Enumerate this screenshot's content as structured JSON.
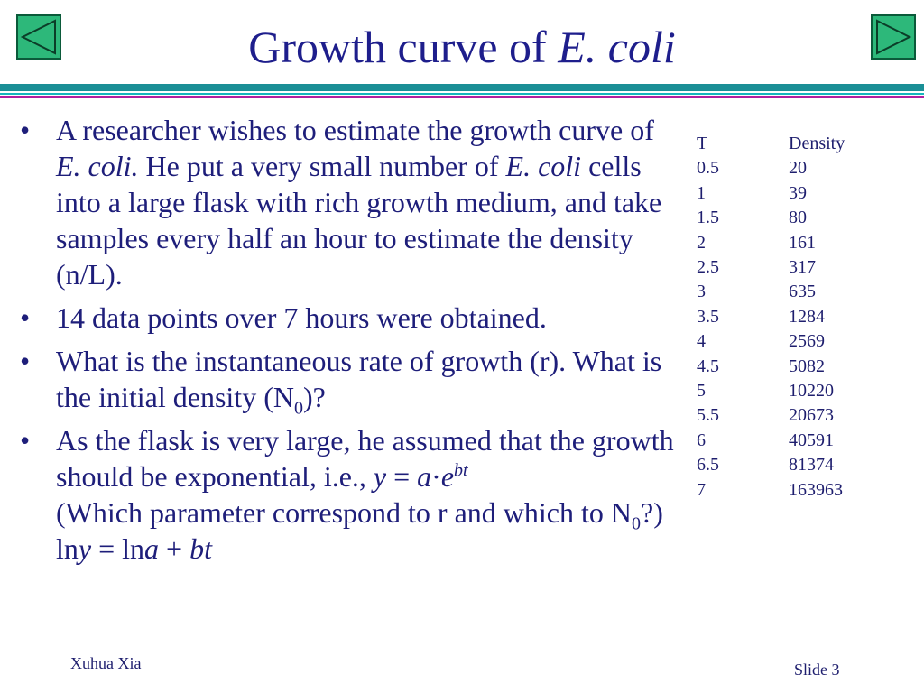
{
  "nav": {
    "prev_icon": "triangle-left-icon",
    "next_icon": "triangle-right-icon"
  },
  "title": {
    "main": "Growth curve of ",
    "italic": "E. coli"
  },
  "bullets": {
    "b1": {
      "t1": "A researcher wishes to estimate the growth curve of ",
      "i1": "E. coli.",
      "t2": " He put a very small number of ",
      "i2": "E. coli",
      "t3": " cells into a large flask with rich growth medium, and take samples every half an hour to estimate the density (n/L)."
    },
    "b2": {
      "text": "14 data points over 7 hours were obtained."
    },
    "b3": {
      "t1": "What is the instantaneous rate of growth (r). What is the initial density (N",
      "sub": "0",
      "t2": ")?"
    },
    "b4": {
      "t1": "As the flask is very large, he assumed that the growth should be exponential, i.e., ",
      "y": "y",
      "eq": " = ",
      "a": "a",
      "dot": "·",
      "e": "e",
      "sup": "bt",
      "t2": "(Which parameter correspond to r and which to N",
      "sub": "0",
      "t3": "?)",
      "ln1": "ln",
      "ly": "y",
      "eq2": " = ln",
      "la": "a",
      "plus": " + ",
      "bt": "bt"
    }
  },
  "table": {
    "headers": [
      "T",
      "Density"
    ],
    "rows": [
      [
        "0.5",
        "20"
      ],
      [
        "1",
        "39"
      ],
      [
        "1.5",
        "80"
      ],
      [
        "2",
        "161"
      ],
      [
        "2.5",
        "317"
      ],
      [
        "3",
        "635"
      ],
      [
        "3.5",
        "1284"
      ],
      [
        "4",
        "2569"
      ],
      [
        "4.5",
        "5082"
      ],
      [
        "5",
        "10220"
      ],
      [
        "5.5",
        "20673"
      ],
      [
        "6",
        "40591"
      ],
      [
        "6.5",
        "81374"
      ],
      [
        "7",
        "163963"
      ]
    ]
  },
  "footer": {
    "author": "Xuhua Xia",
    "slide": "Slide 3"
  },
  "colors": {
    "title": "#1e1e8c",
    "nav_button": "#2db87a",
    "rule_teal": "#1a8f96",
    "rule_magenta": "#b21f9e"
  }
}
